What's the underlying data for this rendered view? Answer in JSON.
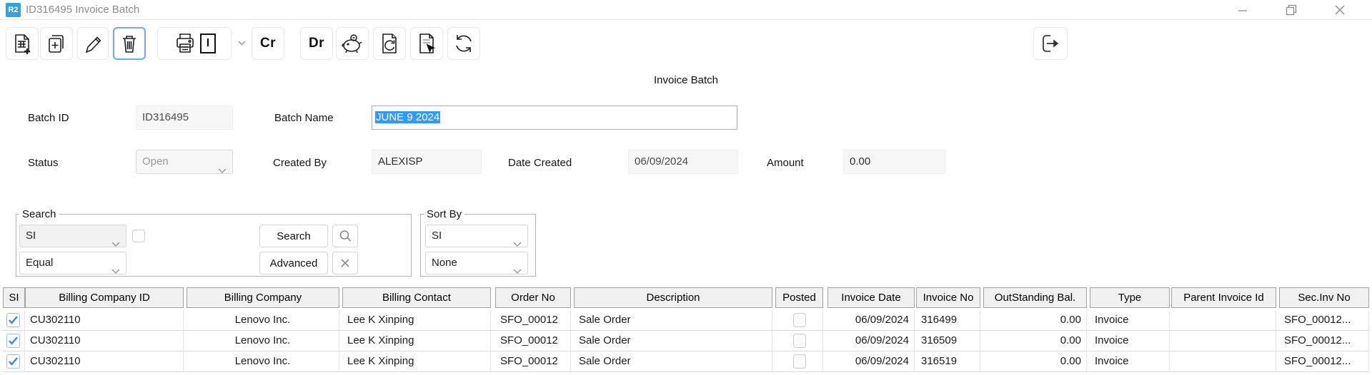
{
  "titlebar": {
    "badge": "R2",
    "title": "ID316495 Invoice Batch"
  },
  "toolbar": {
    "credit_label": "Cr",
    "debit_label": "Dr",
    "print_tag": "I"
  },
  "form": {
    "title": "Invoice Batch",
    "batch_id_label": "Batch ID",
    "batch_id_value": "ID316495",
    "batch_name_label": "Batch Name",
    "batch_name_value": "JUNE 9 2024",
    "status_label": "Status",
    "status_value": "Open",
    "created_by_label": "Created By",
    "created_by_value": "ALEXISP",
    "date_created_label": "Date Created",
    "date_created_value": "06/09/2024",
    "amount_label": "Amount",
    "amount_value": "0.00"
  },
  "search": {
    "legend": "Search",
    "field_value": "SI",
    "operator_value": "Equal",
    "search_label": "Search",
    "advanced_label": "Advanced"
  },
  "sort_by": {
    "legend": "Sort By",
    "primary_value": "SI",
    "secondary_value": "None"
  },
  "table": {
    "columns": [
      "SI",
      "Billing Company ID",
      "Billing Company",
      "Billing Contact",
      "Order No",
      "Description",
      "Posted",
      "Invoice Date",
      "Invoice No",
      "OutStanding Bal.",
      "Type",
      "Parent Invoice Id",
      "Sec.Inv No"
    ],
    "rows": [
      {
        "selected": true,
        "billing_company_id": "CU302110",
        "billing_company": "Lenovo Inc.",
        "billing_contact": "Lee K Xinping",
        "order_no": "SFO_00012",
        "description": "Sale Order",
        "posted": false,
        "invoice_date": "06/09/2024",
        "invoice_no": "316499",
        "outstanding_bal": "0.00",
        "type": "Invoice",
        "parent_invoice_id": "",
        "sec_inv_no": "SFO_00012..."
      },
      {
        "selected": true,
        "billing_company_id": "CU302110",
        "billing_company": "Lenovo Inc.",
        "billing_contact": "Lee K Xinping",
        "order_no": "SFO_00012",
        "description": "Sale Order",
        "posted": false,
        "invoice_date": "06/09/2024",
        "invoice_no": "316509",
        "outstanding_bal": "0.00",
        "type": "Invoice",
        "parent_invoice_id": "",
        "sec_inv_no": "SFO_00012..."
      },
      {
        "selected": true,
        "billing_company_id": "CU302110",
        "billing_company": "Lenovo Inc.",
        "billing_contact": "Lee K Xinping",
        "order_no": "SFO_00012",
        "description": "Sale Order",
        "posted": false,
        "invoice_date": "06/09/2024",
        "invoice_no": "316519",
        "outstanding_bal": "0.00",
        "type": "Invoice",
        "parent_invoice_id": "",
        "sec_inv_no": "SFO_00012..."
      }
    ]
  },
  "colors": {
    "accent_blue": "#34a1e0",
    "selection_blue": "#3399fe",
    "checkbox_blue": "#3f86d6",
    "focus_border": "#71a9e2"
  }
}
